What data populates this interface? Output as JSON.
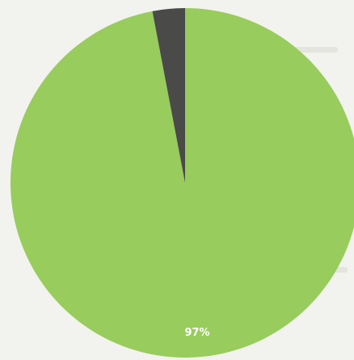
{
  "chart_data": {
    "type": "pie",
    "slices": [
      {
        "value": 97,
        "label": "97%",
        "color": "#98cc5c"
      },
      {
        "value": 3,
        "label": "",
        "color": "#4a4a48"
      }
    ],
    "label_color": "#ffffff"
  }
}
